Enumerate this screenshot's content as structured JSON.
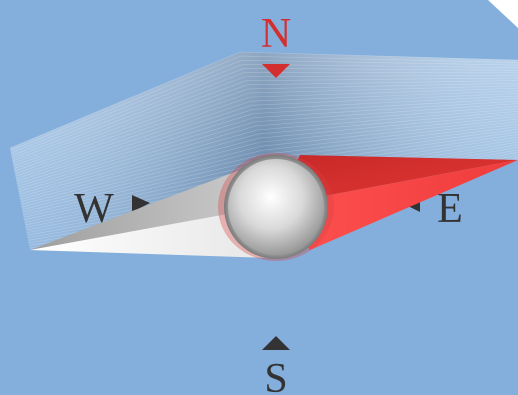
{
  "compass": {
    "north_label": "N",
    "east_label": "E",
    "south_label": "S",
    "west_label": "W"
  },
  "colors": {
    "background": "#84afdc",
    "north_accent": "#d32f2f",
    "label_dark": "#333333",
    "needle_red": "#e53935",
    "needle_silver": "#e0e0e0"
  }
}
